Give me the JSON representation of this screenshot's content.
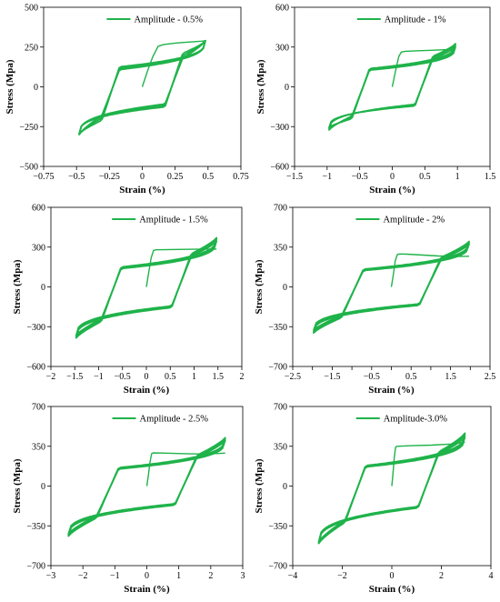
{
  "line_color": "#1fb34a",
  "chart_data": [
    {
      "type": "line",
      "legend": "Amplitude - 0.5%",
      "xlabel": "Strain (%)",
      "ylabel": "Stress (Mpa)",
      "xlim": [
        -0.75,
        0.75
      ],
      "ylim": [
        -500,
        500
      ],
      "xticks": [
        -0.75,
        -0.5,
        -0.25,
        0,
        0.25,
        0.5,
        0.75
      ],
      "xtick_labels": [
        "−0.75",
        "−0.5",
        "−0.25",
        "0",
        "0.25",
        "0.5",
        "0.75"
      ],
      "yticks": [
        -500,
        -250,
        0,
        250,
        500
      ],
      "ytick_labels": [
        "−500",
        "−250",
        "0",
        "250",
        "500"
      ],
      "amplitude": 0.48,
      "initial_curve": {
        "x": [
          0,
          0.04,
          0.08,
          0.12,
          0.16,
          0.2,
          0.25,
          0.3,
          0.35,
          0.4,
          0.45,
          0.48
        ],
        "y": [
          0,
          100,
          190,
          255,
          265,
          270,
          275,
          278,
          281,
          284,
          287,
          290
        ]
      },
      "series": [
        {
          "loop": 1,
          "pos_peak": 290,
          "neg_peak": -300,
          "yield_lower": 180,
          "yield_upper": -180
        },
        {
          "loop": 2,
          "pos_peak": 290,
          "neg_peak": -298,
          "yield_lower": 195,
          "yield_upper": -195
        },
        {
          "loop": 3,
          "pos_peak": 288,
          "neg_peak": -296,
          "yield_lower": 210,
          "yield_upper": -210
        }
      ]
    },
    {
      "type": "line",
      "legend": "Amplitude - 1%",
      "xlabel": "Strain (%)",
      "ylabel": "Stress (Mpa)",
      "xlim": [
        -1.5,
        1.5
      ],
      "ylim": [
        -600,
        600
      ],
      "xticks": [
        -1.5,
        -1,
        -0.5,
        0,
        0.5,
        1,
        1.5
      ],
      "xtick_labels": [
        "−1.5",
        "−1",
        "−0.5",
        "0",
        "0.5",
        "1",
        "1.5"
      ],
      "yticks": [
        -600,
        -300,
        0,
        300,
        600
      ],
      "ytick_labels": [
        "−600",
        "−300",
        "0",
        "300",
        "600"
      ],
      "amplitude": 0.97,
      "initial_curve": {
        "x": [
          0,
          0.05,
          0.1,
          0.14,
          0.2,
          0.4,
          0.6,
          0.8,
          0.97
        ],
        "y": [
          0,
          120,
          230,
          262,
          268,
          272,
          276,
          280,
          283
        ]
      },
      "series": [
        {
          "loop": 1,
          "pos_peak": 300,
          "neg_peak": -325,
          "yield_lower": 210,
          "yield_upper": -220
        },
        {
          "loop": 2,
          "pos_peak": 315,
          "neg_peak": -315,
          "yield_lower": 220,
          "yield_upper": -230
        },
        {
          "loop": 3,
          "pos_peak": 325,
          "neg_peak": -305,
          "yield_lower": 230,
          "yield_upper": -240
        }
      ]
    },
    {
      "type": "line",
      "legend": "Amplitude - 1.5%",
      "xlabel": "Strain (%)",
      "ylabel": "Stress (Mpa)",
      "xlim": [
        -2,
        2
      ],
      "ylim": [
        -600,
        600
      ],
      "xticks": [
        -2,
        -1.5,
        -1,
        -0.5,
        0,
        0.5,
        1,
        1.5,
        2
      ],
      "xtick_labels": [
        "−2",
        "−1.5",
        "−1",
        "−0.5",
        "0",
        "0.5",
        "1",
        "1.5",
        "2"
      ],
      "yticks": [
        -600,
        -300,
        0,
        300,
        600
      ],
      "ytick_labels": [
        "−600",
        "−300",
        "0",
        "300",
        "600"
      ],
      "amplitude": 1.47,
      "initial_curve": {
        "x": [
          0,
          0.05,
          0.1,
          0.15,
          0.2,
          0.5,
          1.0,
          1.47
        ],
        "y": [
          0,
          110,
          220,
          275,
          280,
          282,
          284,
          285
        ]
      },
      "series": [
        {
          "loop": 1,
          "pos_peak": 345,
          "neg_peak": -365,
          "yield_lower": 230,
          "yield_upper": -240
        },
        {
          "loop": 2,
          "pos_peak": 360,
          "neg_peak": -375,
          "yield_lower": 240,
          "yield_upper": -250
        },
        {
          "loop": 3,
          "pos_peak": 370,
          "neg_peak": -385,
          "yield_lower": 250,
          "yield_upper": -260
        }
      ]
    },
    {
      "type": "line",
      "legend": "Amplitude - 2%",
      "xlabel": "Strain (%)",
      "ylabel": "Stress (Mpa)",
      "xlim": [
        -2.5,
        2.5
      ],
      "ylim": [
        -700,
        700
      ],
      "xticks": [
        -2.5,
        -2,
        -1.5,
        -1,
        -0.5,
        0,
        0.5,
        1,
        1.5,
        2,
        2.5
      ],
      "xtick_labels": [
        "−2.5",
        "",
        "−1.5",
        "",
        "−0.5",
        "",
        "0.5",
        "",
        "1.5",
        "",
        "2.5"
      ],
      "yticks": [
        -700,
        -350,
        0,
        350,
        700
      ],
      "ytick_labels": [
        "−700",
        "−350",
        "0",
        "350",
        "700"
      ],
      "amplitude": 1.97,
      "initial_curve": {
        "x": [
          0,
          0.05,
          0.1,
          0.15,
          0.2,
          0.4,
          0.8,
          1.2,
          1.6,
          1.97
        ],
        "y": [
          0,
          110,
          230,
          285,
          290,
          288,
          280,
          272,
          268,
          270
        ]
      },
      "series": [
        {
          "loop": 1,
          "pos_peak": 375,
          "neg_peak": -380,
          "yield_lower": 240,
          "yield_upper": -250
        },
        {
          "loop": 2,
          "pos_peak": 390,
          "neg_peak": -395,
          "yield_lower": 250,
          "yield_upper": -260
        },
        {
          "loop": 3,
          "pos_peak": 400,
          "neg_peak": -405,
          "yield_lower": 260,
          "yield_upper": -270
        }
      ]
    },
    {
      "type": "line",
      "legend": "Amplitude - 2.5%",
      "xlabel": "Strain (%)",
      "ylabel": "Stress (Mpa)",
      "xlim": [
        -3,
        3
      ],
      "ylim": [
        -700,
        700
      ],
      "xticks": [
        -3,
        -2,
        -1,
        0,
        1,
        2,
        3
      ],
      "xtick_labels": [
        "−3",
        "−2",
        "−1",
        "0",
        "1",
        "2",
        "3"
      ],
      "yticks": [
        -700,
        -350,
        0,
        350,
        700
      ],
      "ytick_labels": [
        "−700",
        "−350",
        "0",
        "350",
        "700"
      ],
      "amplitude": 2.45,
      "initial_curve": {
        "x": [
          0,
          0.05,
          0.1,
          0.15,
          0.2,
          0.6,
          1.2,
          1.8,
          2.45
        ],
        "y": [
          0,
          100,
          210,
          285,
          292,
          290,
          285,
          282,
          290
        ]
      },
      "series": [
        {
          "loop": 1,
          "pos_peak": 400,
          "neg_peak": -420,
          "yield_lower": 250,
          "yield_upper": -260
        },
        {
          "loop": 2,
          "pos_peak": 415,
          "neg_peak": -430,
          "yield_lower": 260,
          "yield_upper": -270
        },
        {
          "loop": 3,
          "pos_peak": 425,
          "neg_peak": -440,
          "yield_lower": 270,
          "yield_upper": -280
        }
      ]
    },
    {
      "type": "line",
      "legend": "Amplitude-3.0%",
      "xlabel": "Strain (%)",
      "ylabel": "Stress (Mpa)",
      "xlim": [
        -4,
        4
      ],
      "ylim": [
        -700,
        700
      ],
      "xticks": [
        -4,
        -2,
        0,
        2,
        4
      ],
      "xtick_labels": [
        "−4",
        "−2",
        "0",
        "2",
        "4"
      ],
      "yticks": [
        -700,
        -350,
        0,
        350,
        700
      ],
      "ytick_labels": [
        "−700",
        "−350",
        "0",
        "350",
        "700"
      ],
      "amplitude": 2.95,
      "initial_curve": {
        "x": [
          0,
          0.05,
          0.1,
          0.15,
          0.2,
          0.8,
          1.6,
          2.4,
          2.95
        ],
        "y": [
          0,
          120,
          250,
          340,
          350,
          355,
          360,
          370,
          385
        ]
      },
      "series": [
        {
          "loop": 1,
          "pos_peak": 430,
          "neg_peak": -490,
          "yield_lower": 280,
          "yield_upper": -300
        },
        {
          "loop": 2,
          "pos_peak": 450,
          "neg_peak": -500,
          "yield_lower": 290,
          "yield_upper": -310
        },
        {
          "loop": 3,
          "pos_peak": 465,
          "neg_peak": -505,
          "yield_lower": 300,
          "yield_upper": -320
        }
      ]
    }
  ]
}
